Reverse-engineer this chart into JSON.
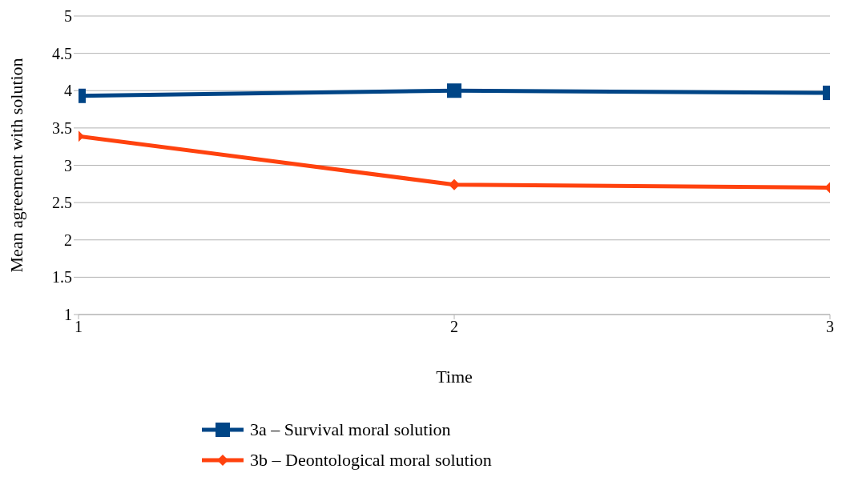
{
  "chart_data": {
    "type": "line",
    "xlabel": "Time",
    "ylabel": "Mean agreement with solution",
    "x": [
      1,
      2,
      3
    ],
    "xlim": [
      1,
      3
    ],
    "xticks": [
      1,
      2,
      3
    ],
    "ylim": [
      1,
      5
    ],
    "yticks": [
      1,
      1.5,
      2,
      2.5,
      3,
      3.5,
      4,
      4.5,
      5
    ],
    "grid": "y",
    "legend": "bottom",
    "series": [
      {
        "name": "3a – Survival moral solution",
        "color": "#004586",
        "marker": "square",
        "values": [
          3.93,
          4.0,
          3.97
        ]
      },
      {
        "name": "3b – Deontological moral solution",
        "color": "#ff420e",
        "marker": "diamond",
        "values": [
          3.39,
          2.74,
          2.7
        ]
      }
    ]
  }
}
